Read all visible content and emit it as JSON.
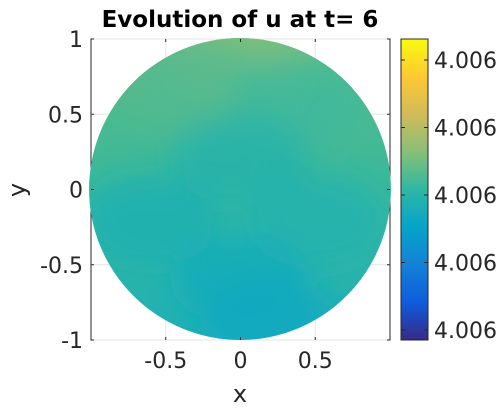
{
  "chart_data": {
    "type": "heatmap",
    "title": "Evolution of u at t= 6",
    "xlabel": "x",
    "ylabel": "y",
    "xlim": [
      -1,
      1
    ],
    "ylim": [
      -1,
      1
    ],
    "x_ticks": [
      {
        "value": -0.5,
        "label": "-0.5"
      },
      {
        "value": 0,
        "label": "0"
      },
      {
        "value": 0.5,
        "label": "0.5"
      }
    ],
    "y_ticks": [
      {
        "value": 1,
        "label": "1"
      },
      {
        "value": 0.5,
        "label": "0.5"
      },
      {
        "value": 0,
        "label": "0"
      },
      {
        "value": -0.5,
        "label": "-0.5"
      },
      {
        "value": -1,
        "label": "-1"
      }
    ],
    "grid": true,
    "domain_shape": "unit-disk",
    "colormap": "parula",
    "colorbar": {
      "position": "right",
      "tick_labels": [
        "4.006",
        "4.006",
        "4.006",
        "4.006",
        "4.006"
      ]
    },
    "colors": {
      "parula_low": "#352a87",
      "parula_mid": "#1ec0b0",
      "parula_high": "#f9fb0e",
      "field_base": "#30b89a"
    },
    "field_description_levels": [
      {
        "x": 0.0,
        "y": 0.9,
        "level": 0.62
      },
      {
        "x": -0.3,
        "y": 0.7,
        "level": 0.55
      },
      {
        "x": 0.4,
        "y": 0.6,
        "level": 0.52
      },
      {
        "x": 0.0,
        "y": 0.2,
        "level": 0.47
      },
      {
        "x": -0.6,
        "y": -0.2,
        "level": 0.45
      },
      {
        "x": 0.5,
        "y": -0.2,
        "level": 0.46
      },
      {
        "x": 0.0,
        "y": -0.6,
        "level": 0.42
      },
      {
        "x": 0.2,
        "y": -0.9,
        "level": 0.4
      }
    ]
  }
}
